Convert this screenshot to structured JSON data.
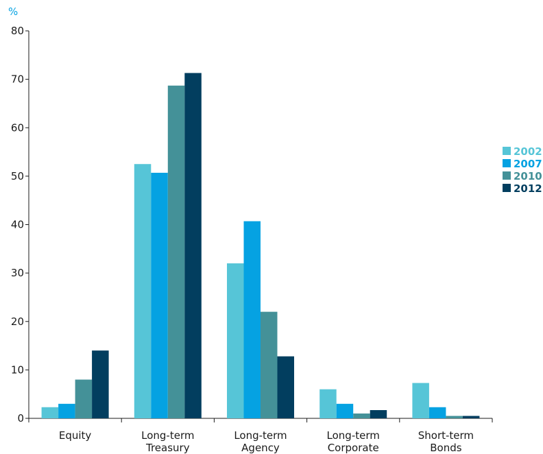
{
  "chart_data": {
    "type": "bar",
    "unit_label": "%",
    "categories": [
      [
        "Equity"
      ],
      [
        "Long-term",
        "Treasury"
      ],
      [
        "Long-term",
        "Agency"
      ],
      [
        "Long-term",
        "Corporate"
      ],
      [
        "Short-term",
        "Bonds"
      ]
    ],
    "series": [
      {
        "name": "2002",
        "color": "#56c5d7",
        "values": [
          2.3,
          52.5,
          32,
          6,
          7.3
        ]
      },
      {
        "name": "2007",
        "color": "#05a2e2",
        "values": [
          3,
          50.7,
          40.7,
          3,
          2.3
        ]
      },
      {
        "name": "2010",
        "color": "#449198",
        "values": [
          8,
          68.7,
          22,
          1,
          0.5
        ]
      },
      {
        "name": "2012",
        "color": "#023e5f",
        "values": [
          14,
          71.3,
          12.8,
          1.7,
          0.5
        ]
      }
    ],
    "ylim": [
      0,
      80
    ],
    "yticks": [
      0,
      10,
      20,
      30,
      40,
      50,
      60,
      70,
      80
    ],
    "grid": false,
    "legend_position": "right",
    "unit_color": "#05a2e2"
  }
}
